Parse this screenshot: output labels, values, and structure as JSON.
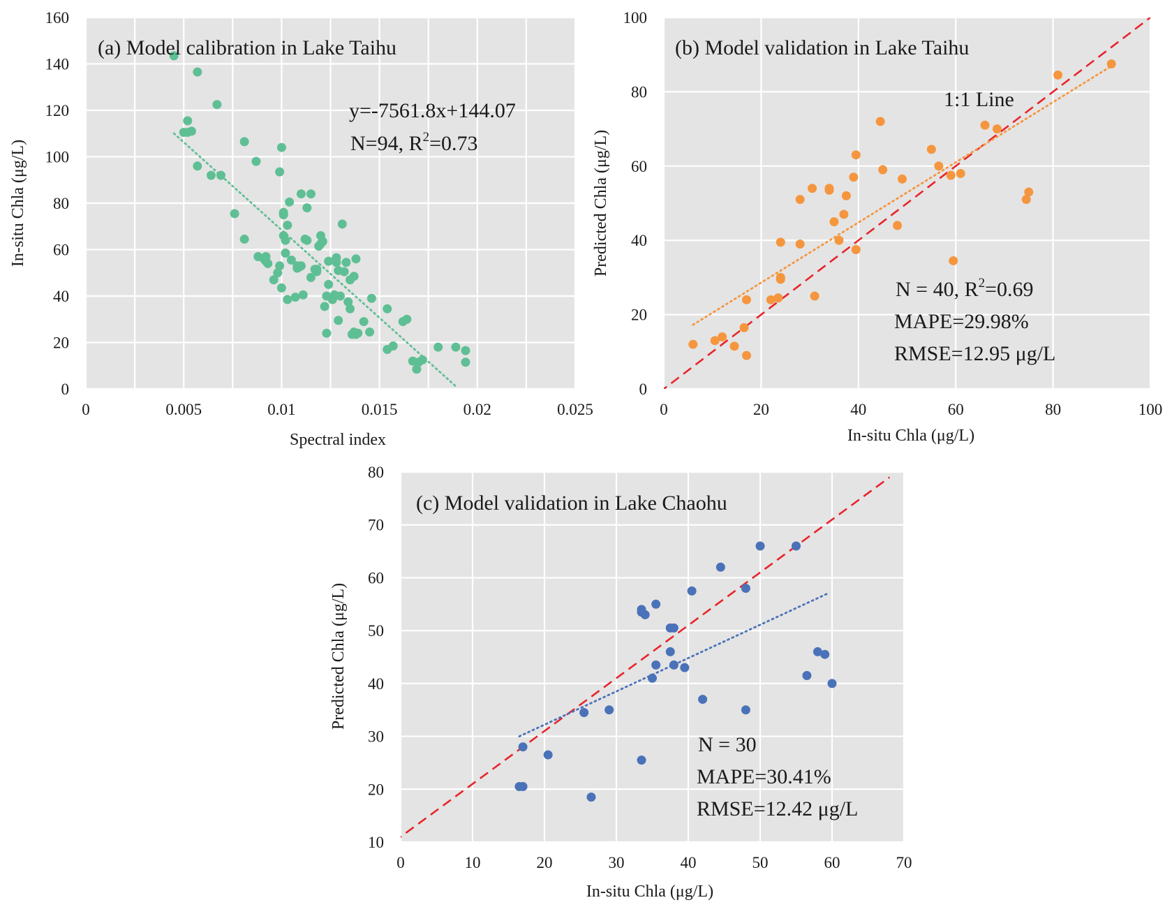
{
  "chart_data": [
    {
      "type": "scatter",
      "id": "a",
      "title": "(a) Model calibration in Lake Taihu",
      "xlabel": "Spectral index",
      "ylabel": "In-situ Chla (μg/L)",
      "xlim": [
        0,
        0.025
      ],
      "ylim": [
        0,
        160
      ],
      "xticks": [
        0,
        0.005,
        0.01,
        0.015,
        0.02,
        0.025
      ],
      "xtick_labels": [
        "0",
        "0.005",
        "0.01",
        "0.015",
        "0.02",
        "0.025"
      ],
      "yticks": [
        0,
        20,
        40,
        60,
        80,
        100,
        120,
        140,
        160
      ],
      "ytick_labels": [
        "0",
        "20",
        "40",
        "60",
        "80",
        "100",
        "120",
        "140",
        "160"
      ],
      "point_color": "#5fbf94",
      "trend_color": "#5fbf94",
      "trendline": {
        "x0": 0.0045,
        "x1": 0.0189,
        "slope": -7561.8,
        "intercept": 144.07
      },
      "annotations": [
        {
          "text": "y=-7561.8x+144.07"
        },
        {
          "text": "N=94, R",
          "sup": "2",
          "tail": "=0.73"
        }
      ],
      "points": [
        [
          0.0045,
          143.5
        ],
        [
          0.0057,
          136.5
        ],
        [
          0.0067,
          122.5
        ],
        [
          0.0052,
          115.5
        ],
        [
          0.005,
          110.5
        ],
        [
          0.0052,
          110.5
        ],
        [
          0.0054,
          111
        ],
        [
          0.0057,
          96
        ],
        [
          0.0064,
          92
        ],
        [
          0.0069,
          92
        ],
        [
          0.0081,
          106.5
        ],
        [
          0.0087,
          98
        ],
        [
          0.0099,
          93.5
        ],
        [
          0.01,
          104
        ],
        [
          0.0076,
          75.5
        ],
        [
          0.0081,
          64.5
        ],
        [
          0.0088,
          57
        ],
        [
          0.0091,
          56
        ],
        [
          0.0092,
          55
        ],
        [
          0.0092,
          57
        ],
        [
          0.0096,
          47
        ],
        [
          0.0098,
          50
        ],
        [
          0.0099,
          53
        ],
        [
          0.01,
          43.5
        ],
        [
          0.0101,
          66
        ],
        [
          0.0101,
          75
        ],
        [
          0.0101,
          76
        ],
        [
          0.0102,
          64
        ],
        [
          0.0102,
          58.5
        ],
        [
          0.0103,
          38.5
        ],
        [
          0.0103,
          70.5
        ],
        [
          0.0104,
          80.5
        ],
        [
          0.0105,
          55.5
        ],
        [
          0.0107,
          39.5
        ],
        [
          0.0108,
          53
        ],
        [
          0.0109,
          52.5
        ],
        [
          0.011,
          84
        ],
        [
          0.011,
          53
        ],
        [
          0.0111,
          40.5
        ],
        [
          0.0112,
          64.5
        ],
        [
          0.0113,
          78
        ],
        [
          0.0115,
          84
        ],
        [
          0.0115,
          48
        ],
        [
          0.0117,
          51.5
        ],
        [
          0.0118,
          51.5
        ],
        [
          0.0119,
          61.5
        ],
        [
          0.012,
          66
        ],
        [
          0.012,
          62.5
        ],
        [
          0.0121,
          63.5
        ],
        [
          0.0122,
          35.5
        ],
        [
          0.0123,
          24
        ],
        [
          0.0123,
          40
        ],
        [
          0.0124,
          45
        ],
        [
          0.0124,
          55
        ],
        [
          0.0126,
          38.5
        ],
        [
          0.0127,
          40.5
        ],
        [
          0.0128,
          56.5
        ],
        [
          0.0128,
          54.5
        ],
        [
          0.0129,
          51
        ],
        [
          0.0129,
          29.5
        ],
        [
          0.013,
          40
        ],
        [
          0.0131,
          71
        ],
        [
          0.0132,
          50.5
        ],
        [
          0.0133,
          54.5
        ],
        [
          0.0134,
          37.5
        ],
        [
          0.0135,
          34.5
        ],
        [
          0.0135,
          47
        ],
        [
          0.0136,
          23.5
        ],
        [
          0.0137,
          24.5
        ],
        [
          0.0137,
          48.5
        ],
        [
          0.0138,
          56
        ],
        [
          0.0138,
          23.5
        ],
        [
          0.0142,
          29
        ],
        [
          0.0145,
          24.5
        ],
        [
          0.0146,
          39
        ],
        [
          0.0154,
          34.5
        ],
        [
          0.0154,
          17
        ],
        [
          0.0157,
          18.5
        ],
        [
          0.0164,
          30
        ],
        [
          0.0167,
          12
        ],
        [
          0.0169,
          8.5
        ],
        [
          0.017,
          11.5
        ],
        [
          0.0172,
          12.5
        ],
        [
          0.018,
          18
        ],
        [
          0.0189,
          18
        ],
        [
          0.0194,
          16.5
        ],
        [
          0.0194,
          11.5
        ],
        [
          0.0093,
          54
        ],
        [
          0.0113,
          64
        ],
        [
          0.0126,
          39
        ],
        [
          0.0108,
          52
        ],
        [
          0.0139,
          24
        ],
        [
          0.0162,
          29
        ],
        [
          0.0118,
          50.5
        ]
      ]
    },
    {
      "type": "scatter",
      "id": "b",
      "title": "(b) Model validation in Lake Taihu",
      "xlabel": "In-situ Chla (μg/L)",
      "ylabel": "Predicted Chla (μg/L)",
      "xlim": [
        0,
        100
      ],
      "ylim": [
        0,
        100
      ],
      "xticks": [
        0,
        20,
        40,
        60,
        80,
        100
      ],
      "xtick_labels": [
        "0",
        "20",
        "40",
        "60",
        "80",
        "100"
      ],
      "yticks": [
        0,
        20,
        40,
        60,
        80,
        100
      ],
      "ytick_labels": [
        "0",
        "20",
        "40",
        "60",
        "80",
        "100"
      ],
      "point_color": "#f5963f",
      "trend_color": "#f5963f",
      "trendline": {
        "x0": 6,
        "x1": 92,
        "slope": 0.81,
        "intercept": 12.4
      },
      "oneone_label": "1:1 Line",
      "annotations": [
        {
          "text": "N = 40, R",
          "sup": "2",
          "tail": "=0.69"
        },
        {
          "text": "MAPE=29.98%"
        },
        {
          "text": "RMSE=12.95 μg/L"
        }
      ],
      "points": [
        [
          6,
          12
        ],
        [
          10.5,
          13
        ],
        [
          12,
          14
        ],
        [
          14.5,
          11.5
        ],
        [
          16.5,
          16.5
        ],
        [
          17,
          9
        ],
        [
          17,
          24
        ],
        [
          22,
          24
        ],
        [
          23.5,
          24.5
        ],
        [
          24,
          30
        ],
        [
          24,
          29.5
        ],
        [
          24,
          39.5
        ],
        [
          28,
          39
        ],
        [
          28,
          51
        ],
        [
          30.5,
          54
        ],
        [
          31,
          25
        ],
        [
          34,
          54
        ],
        [
          34,
          53.5
        ],
        [
          35,
          45
        ],
        [
          36,
          40
        ],
        [
          37,
          47
        ],
        [
          37.5,
          52
        ],
        [
          39,
          57
        ],
        [
          39.5,
          63
        ],
        [
          39.5,
          37.5
        ],
        [
          44.5,
          72
        ],
        [
          45,
          59
        ],
        [
          48,
          44
        ],
        [
          49,
          56.5
        ],
        [
          55,
          64.5
        ],
        [
          56.5,
          60
        ],
        [
          59,
          57.5
        ],
        [
          59.5,
          34.5
        ],
        [
          61,
          58
        ],
        [
          66,
          71
        ],
        [
          68.5,
          70
        ],
        [
          74.5,
          51
        ],
        [
          75,
          53
        ],
        [
          81,
          84.5
        ],
        [
          92,
          87.5
        ]
      ]
    },
    {
      "type": "scatter",
      "id": "c",
      "title": "(c) Model validation in Lake Chaohu",
      "xlabel": "In-situ Chla (μg/L)",
      "ylabel": "Predicted Chla (μg/L)",
      "xlim": [
        0,
        70
      ],
      "ylim": [
        10,
        80
      ],
      "xticks": [
        0,
        10,
        20,
        30,
        40,
        50,
        60,
        70
      ],
      "xtick_labels": [
        "0",
        "10",
        "20",
        "30",
        "40",
        "50",
        "60",
        "70"
      ],
      "yticks": [
        10,
        20,
        30,
        40,
        50,
        60,
        70,
        80
      ],
      "ytick_labels": [
        "10",
        "20",
        "30",
        "40",
        "50",
        "60",
        "70",
        "80"
      ],
      "point_color": "#4a72b8",
      "trend_color": "#4a72b8",
      "trendline": {
        "x0": 16.5,
        "x1": 59.5,
        "slope": 0.63,
        "intercept": 19.6
      },
      "annotations": [
        {
          "text": "N = 30"
        },
        {
          "text": "MAPE=30.41%"
        },
        {
          "text": "RMSE=12.42 μg/L"
        }
      ],
      "points": [
        [
          16.5,
          20.5
        ],
        [
          17,
          20.5
        ],
        [
          17,
          28
        ],
        [
          20.5,
          26.5
        ],
        [
          25.5,
          34.5
        ],
        [
          26.5,
          18.5
        ],
        [
          29,
          35
        ],
        [
          33.5,
          25.5
        ],
        [
          33.5,
          54
        ],
        [
          33.5,
          53.5
        ],
        [
          34,
          53
        ],
        [
          35,
          41
        ],
        [
          35.5,
          43.5
        ],
        [
          35.5,
          55
        ],
        [
          37.5,
          46
        ],
        [
          37.5,
          50.5
        ],
        [
          38,
          50.5
        ],
        [
          38,
          43.5
        ],
        [
          39.5,
          43
        ],
        [
          40.5,
          57.5
        ],
        [
          42,
          37
        ],
        [
          44.5,
          62
        ],
        [
          48,
          58
        ],
        [
          48,
          35
        ],
        [
          50,
          66
        ],
        [
          55,
          66
        ],
        [
          56.5,
          41.5
        ],
        [
          58,
          46
        ],
        [
          59,
          45.5
        ],
        [
          60,
          40
        ]
      ]
    }
  ]
}
